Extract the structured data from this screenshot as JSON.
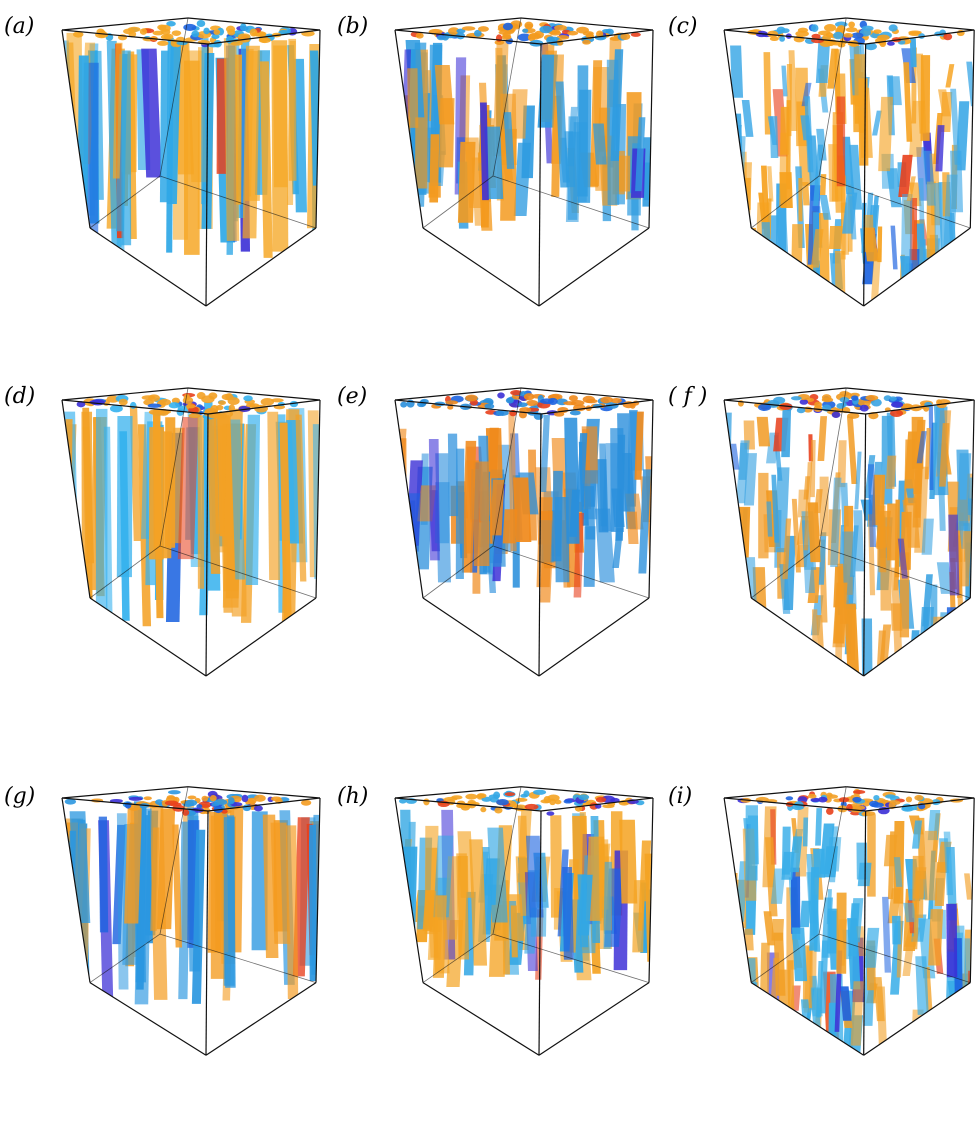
{
  "figure": {
    "panels": [
      {
        "id": "a",
        "label": "(a)",
        "colors": {
          "warm": "#f5a623",
          "cool": "#2fa8e6"
        },
        "style": "columns"
      },
      {
        "id": "b",
        "label": "(b)",
        "colors": {
          "warm": "#f39a1e",
          "cool": "#2e9be0"
        },
        "style": "columns-mixed"
      },
      {
        "id": "c",
        "label": "(c)",
        "colors": {
          "warm": "#f6a21f",
          "cool": "#3aa7e6"
        },
        "style": "diffuse"
      },
      {
        "id": "d",
        "label": "(d)",
        "colors": {
          "warm": "#f3a125",
          "cool": "#35b1ee"
        },
        "style": "columns"
      },
      {
        "id": "e",
        "label": "(e)",
        "colors": {
          "warm": "#f08a1c",
          "cool": "#2a8fdc"
        },
        "style": "columns-mixed"
      },
      {
        "id": "f",
        "label": "( f )",
        "colors": {
          "warm": "#f19a22",
          "cool": "#3aa3e2"
        },
        "style": "diffuse"
      },
      {
        "id": "g",
        "label": "(g)",
        "colors": {
          "warm": "#f49b20",
          "cool": "#2b97e0"
        },
        "style": "columns"
      },
      {
        "id": "h",
        "label": "(h)",
        "colors": {
          "warm": "#f4a322",
          "cool": "#33a7e4"
        },
        "style": "columns-mixed"
      },
      {
        "id": "i",
        "label": "(i)",
        "colors": {
          "warm": "#f2a026",
          "cool": "#38ade8"
        },
        "style": "diffuse"
      }
    ]
  }
}
